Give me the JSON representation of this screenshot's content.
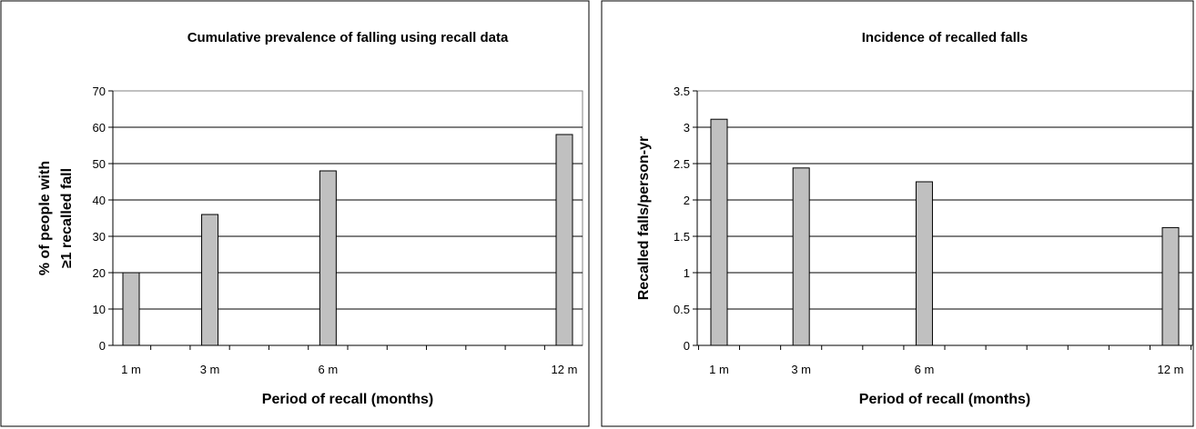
{
  "chart_data": [
    {
      "type": "bar",
      "title": "Cumulative prevalence of falling using recall data",
      "xlabel": "Period of recall (months)",
      "ylabel_lines": [
        "% of people with",
        "≥1 recalled fall"
      ],
      "x_ticks": [
        1,
        3,
        6,
        12
      ],
      "x_tick_labels": [
        "1 m",
        "3 m",
        "6 m",
        "12 m"
      ],
      "x_range": [
        1,
        12
      ],
      "ylim": [
        0,
        70
      ],
      "y_ticks": [
        0,
        10,
        20,
        30,
        40,
        50,
        60,
        70
      ],
      "y_tick_labels": [
        "0",
        "10",
        "20",
        "30",
        "40",
        "50",
        "60",
        "70"
      ],
      "points": [
        {
          "x": 1,
          "value": 20
        },
        {
          "x": 3,
          "value": 36
        },
        {
          "x": 6,
          "value": 48
        },
        {
          "x": 12,
          "value": 58
        }
      ],
      "bar_color": "#c0c0c0",
      "grid": true,
      "legend": "none"
    },
    {
      "type": "bar",
      "title": "Incidence of recalled falls",
      "xlabel": "Period of recall (months)",
      "ylabel_lines": [
        "Recalled falls/person-yr"
      ],
      "x_ticks": [
        1,
        3,
        6,
        12
      ],
      "x_tick_labels": [
        "1 m",
        "3 m",
        "6 m",
        "12 m"
      ],
      "x_range": [
        1,
        12
      ],
      "ylim": [
        0,
        3.5
      ],
      "y_ticks": [
        0,
        0.5,
        1,
        1.5,
        2,
        2.5,
        3,
        3.5
      ],
      "y_tick_labels": [
        "0",
        "0.5",
        "1",
        "1.5",
        "2",
        "2.5",
        "3",
        "3.5"
      ],
      "points": [
        {
          "x": 1,
          "value": 3.11
        },
        {
          "x": 3,
          "value": 2.44
        },
        {
          "x": 6,
          "value": 2.25
        },
        {
          "x": 12,
          "value": 1.62
        }
      ],
      "bar_color": "#c0c0c0",
      "grid": true,
      "legend": "none"
    }
  ]
}
